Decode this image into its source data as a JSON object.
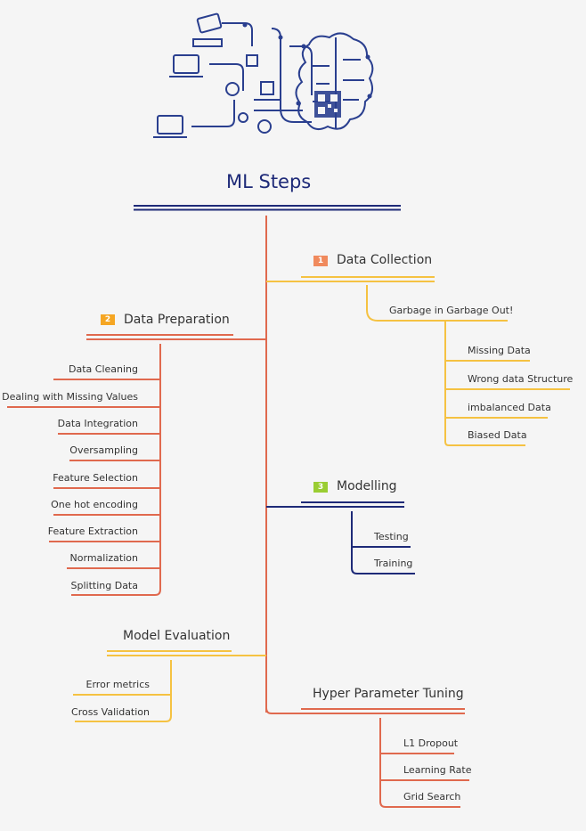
{
  "title": "ML Steps",
  "colors": {
    "background": "#f5f5f5",
    "title": "#1e2a78",
    "trunk": "#e0694e",
    "data_collection": "#f5c242",
    "data_preparation": "#e0694e",
    "modelling": "#1e2a78",
    "model_evaluation": "#f5c242",
    "hyper_parameter_tuning": "#e0694e",
    "badge1": "#f08a5d",
    "badge2": "#f5a623",
    "badge3": "#9acd32",
    "illustration": "#2a3f8f"
  },
  "illustration": {
    "icon": "ai-brain-circuit-illustration"
  },
  "branches": {
    "data_collection": {
      "badge": "1",
      "label": "Data Collection",
      "sub": {
        "label": "Garbage in Garbage Out!",
        "children": [
          "Missing Data",
          "Wrong data Structure",
          "imbalanced Data",
          "Biased Data"
        ]
      }
    },
    "data_preparation": {
      "badge": "2",
      "label": "Data Preparation",
      "children": [
        "Data Cleaning",
        "Dealing with Missing Values",
        "Data Integration",
        "Oversampling",
        "Feature Selection",
        "One hot encoding",
        "Feature Extraction",
        "Normalization",
        "Splitting Data"
      ]
    },
    "modelling": {
      "badge": "3",
      "label": "Modelling",
      "children": [
        "Testing",
        "Training"
      ]
    },
    "model_evaluation": {
      "label": "Model Evaluation",
      "children": [
        "Error metrics",
        "Cross Validation"
      ]
    },
    "hyper_parameter_tuning": {
      "label": "Hyper Parameter Tuning",
      "children": [
        "L1 Dropout",
        "Learning Rate",
        "Grid Search"
      ]
    }
  }
}
